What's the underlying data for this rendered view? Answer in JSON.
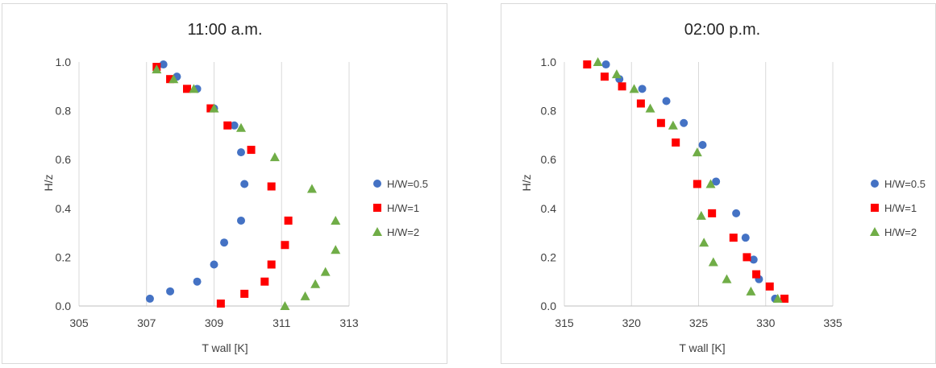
{
  "colors": {
    "H/W=0.5": "#4472c4",
    "H/W=1": "#ff0000",
    "H/W=2": "#70ad47"
  },
  "chart_data": [
    {
      "type": "scatter",
      "title": "11:00 a.m.",
      "xlabel": "T wall [K]",
      "ylabel": "H/z",
      "xlim": [
        305,
        313
      ],
      "ylim": [
        0,
        1
      ],
      "xticks": [
        "305",
        "307",
        "309",
        "311",
        "313"
      ],
      "yticks": [
        "0.0",
        "0.2",
        "0.4",
        "0.6",
        "0.8",
        "1.0"
      ],
      "grid": "vertical",
      "legend": "right",
      "series": [
        {
          "name": "H/W=0.5",
          "marker": "circle",
          "x": [
            307.1,
            307.7,
            308.5,
            309.0,
            309.3,
            309.8,
            309.9,
            309.8,
            309.6,
            309.0,
            308.5,
            307.9,
            307.5
          ],
          "y": [
            0.03,
            0.06,
            0.1,
            0.17,
            0.26,
            0.35,
            0.5,
            0.63,
            0.74,
            0.81,
            0.89,
            0.94,
            0.99
          ]
        },
        {
          "name": "H/W=1",
          "marker": "square",
          "x": [
            309.2,
            309.9,
            310.5,
            310.7,
            311.1,
            311.2,
            310.7,
            310.1,
            309.4,
            308.9,
            308.2,
            307.7,
            307.3
          ],
          "y": [
            0.01,
            0.05,
            0.1,
            0.17,
            0.25,
            0.35,
            0.49,
            0.64,
            0.74,
            0.81,
            0.89,
            0.93,
            0.98
          ]
        },
        {
          "name": "H/W=2",
          "marker": "triangle",
          "x": [
            311.1,
            311.7,
            312.0,
            312.3,
            312.6,
            312.6,
            311.9,
            310.8,
            309.8,
            309.0,
            308.4,
            307.8,
            307.3
          ],
          "y": [
            0.0,
            0.04,
            0.09,
            0.14,
            0.23,
            0.35,
            0.48,
            0.61,
            0.73,
            0.81,
            0.89,
            0.93,
            0.97
          ]
        }
      ]
    },
    {
      "type": "scatter",
      "title": "02:00 p.m.",
      "xlabel": "T wall [K]",
      "ylabel": "H/z",
      "xlim": [
        315,
        335
      ],
      "ylim": [
        0,
        1
      ],
      "xticks": [
        "315",
        "320",
        "325",
        "330",
        "335"
      ],
      "yticks": [
        "0.0",
        "0.2",
        "0.4",
        "0.6",
        "0.8",
        "1.0"
      ],
      "grid": "vertical",
      "legend": "right",
      "series": [
        {
          "name": "H/W=0.5",
          "marker": "circle",
          "x": [
            330.7,
            329.5,
            329.1,
            328.5,
            327.8,
            326.3,
            325.3,
            323.9,
            322.6,
            320.8,
            319.1,
            318.1
          ],
          "y": [
            0.03,
            0.11,
            0.19,
            0.28,
            0.38,
            0.51,
            0.66,
            0.75,
            0.84,
            0.89,
            0.93,
            0.99
          ]
        },
        {
          "name": "H/W=1",
          "marker": "square",
          "x": [
            331.4,
            330.3,
            329.3,
            328.6,
            327.6,
            326.0,
            324.9,
            323.3,
            322.2,
            320.7,
            319.3,
            318.0,
            316.7
          ],
          "y": [
            0.03,
            0.08,
            0.13,
            0.2,
            0.28,
            0.38,
            0.5,
            0.67,
            0.75,
            0.83,
            0.9,
            0.94,
            0.99
          ]
        },
        {
          "name": "H/W=2",
          "marker": "triangle",
          "x": [
            330.9,
            328.9,
            327.1,
            326.1,
            325.4,
            325.2,
            325.9,
            324.9,
            323.1,
            321.4,
            320.2,
            318.9,
            317.5
          ],
          "y": [
            0.03,
            0.06,
            0.11,
            0.18,
            0.26,
            0.37,
            0.5,
            0.63,
            0.74,
            0.81,
            0.89,
            0.95,
            1.0
          ]
        }
      ]
    }
  ]
}
